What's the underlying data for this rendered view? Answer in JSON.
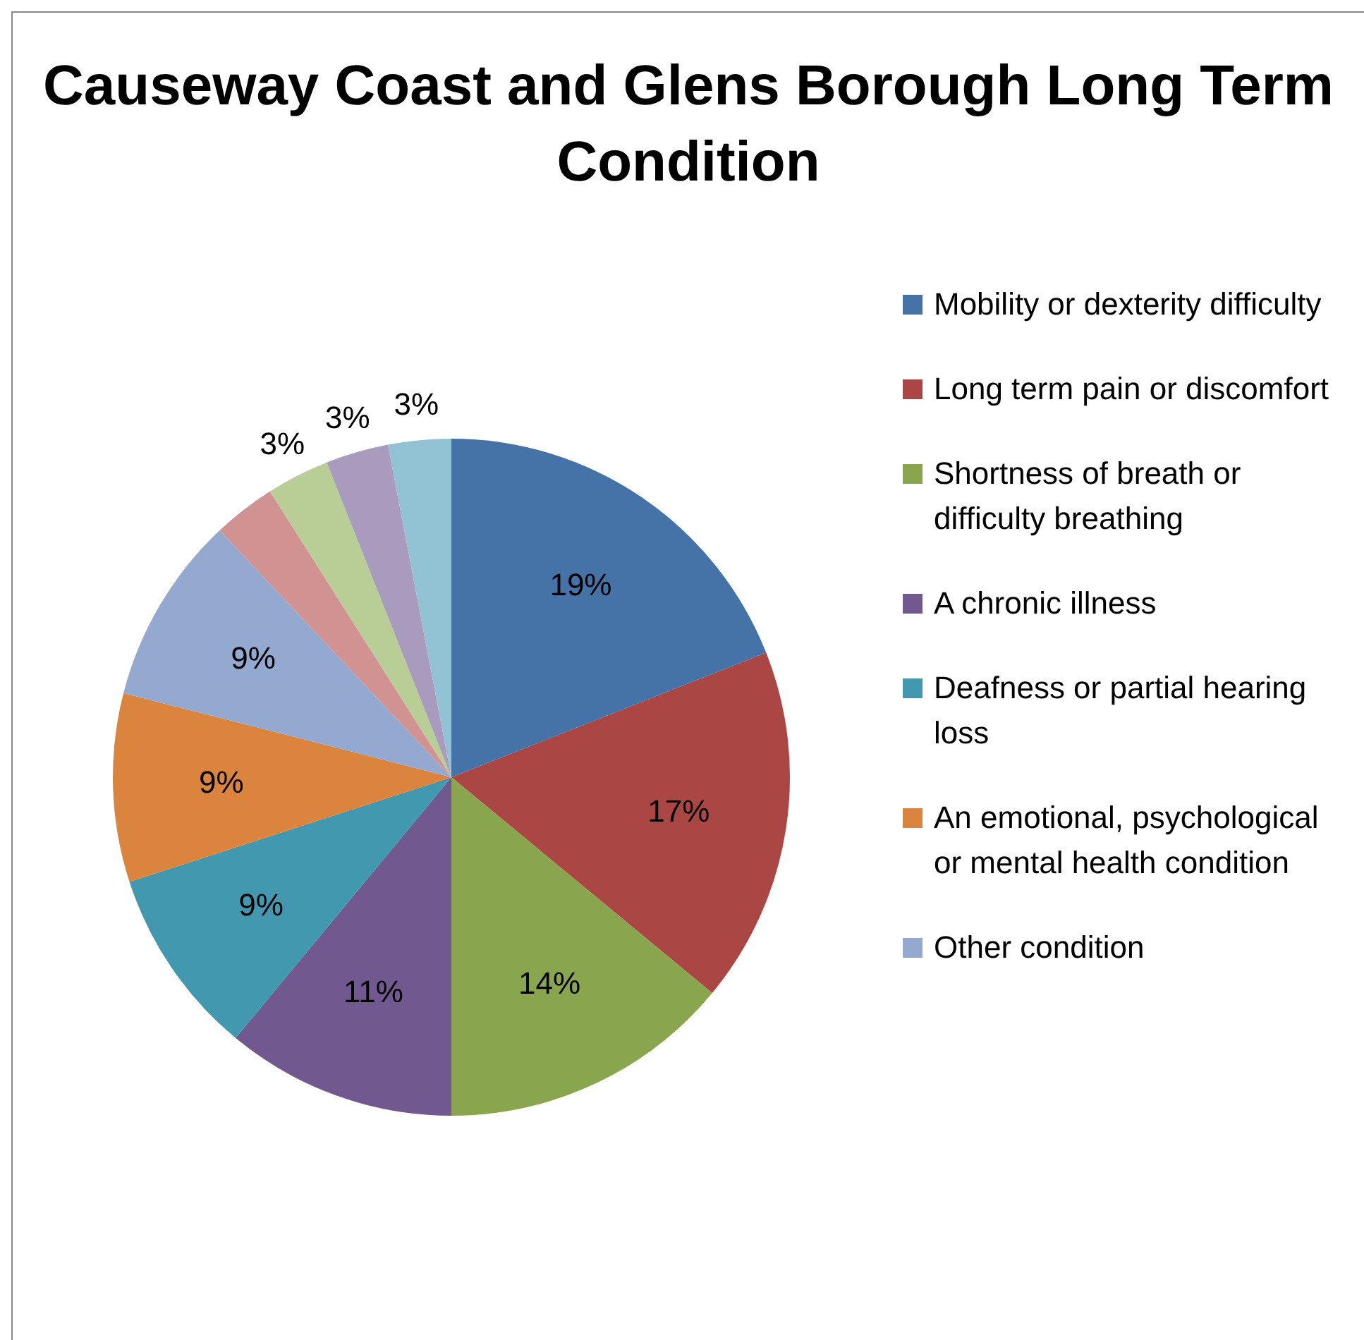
{
  "chart_data": {
    "type": "pie",
    "title": "Causeway Coast and Glens Borough Long Term Condition",
    "categories": [
      "Mobility or dexterity difficulty",
      "Long term pain or discomfort",
      "Shortness of breath or difficulty breathing",
      "A chronic illness",
      "Deafness or partial hearing loss",
      "An emotional, psychological or mental health condition",
      "Other condition",
      null,
      null,
      null,
      null
    ],
    "values": [
      19,
      17,
      14,
      11,
      9,
      9,
      9,
      3,
      3,
      3,
      3
    ],
    "value_labels": [
      "19%",
      "17%",
      "14%",
      "11%",
      "9%",
      "9%",
      "9%",
      null,
      "3%",
      "3%",
      "3%"
    ],
    "colors": [
      "#4572a7",
      "#aa4643",
      "#89a54e",
      "#71588f",
      "#4198af",
      "#db843d",
      "#93a9cf",
      "#d19392",
      "#b9cd96",
      "#a99bbd",
      "#92c3d4"
    ],
    "legend": "right"
  }
}
